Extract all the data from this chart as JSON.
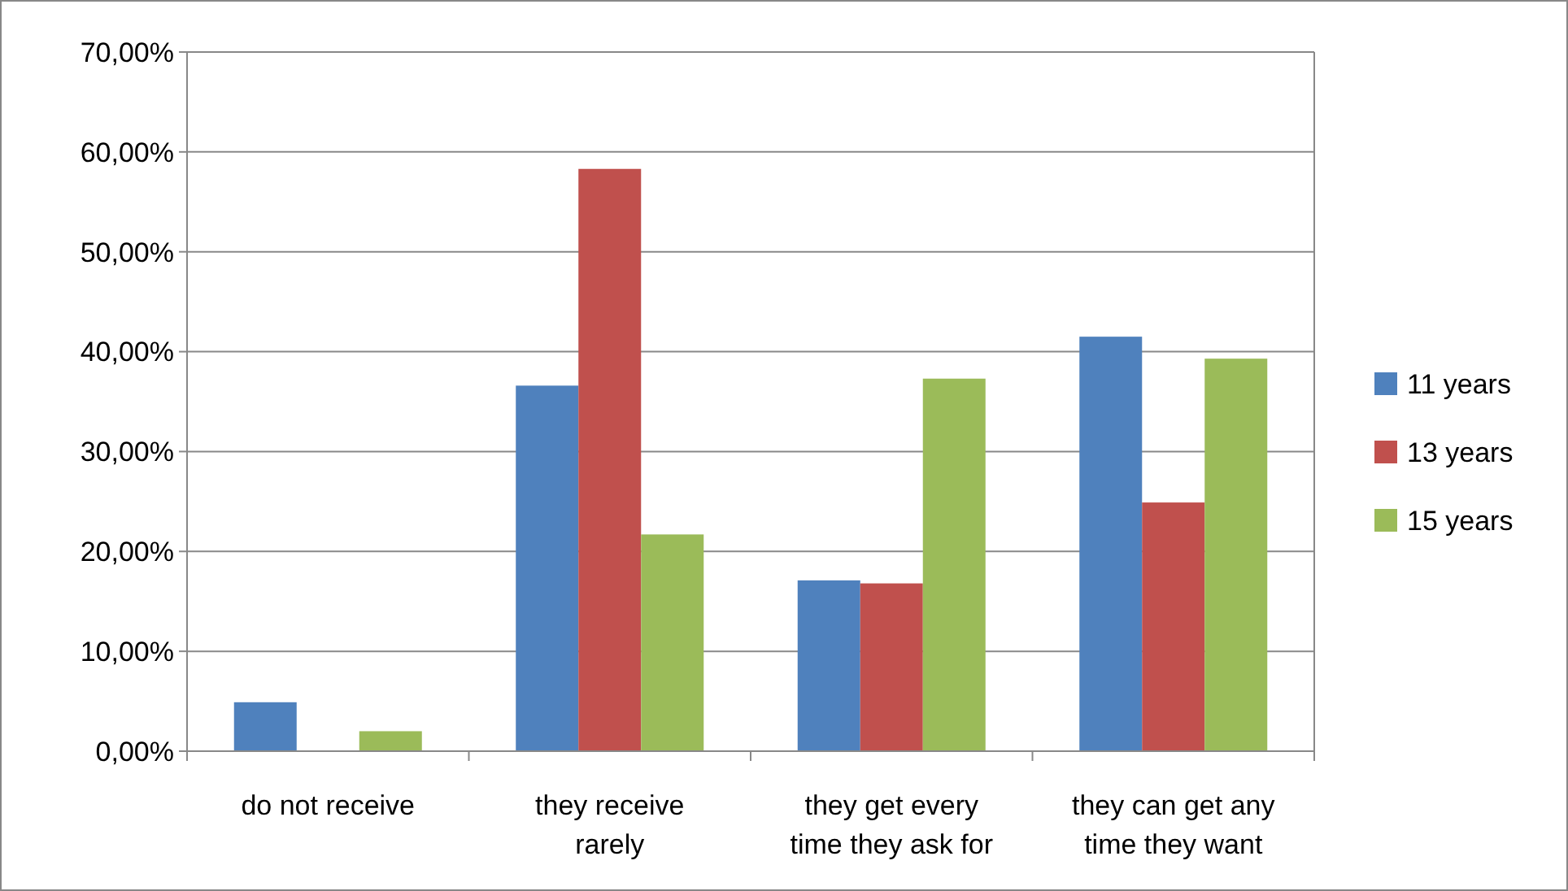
{
  "chart_data": {
    "type": "bar",
    "categories": [
      "do not receive",
      "they receive rarely",
      "they get every time they ask for",
      "they can get any time they want"
    ],
    "series": [
      {
        "name": "11 years",
        "color": "#4f81bd",
        "values": [
          4.9,
          36.6,
          17.1,
          41.5
        ]
      },
      {
        "name": "13 years",
        "color": "#c0504d",
        "values": [
          0,
          58.3,
          16.8,
          24.9
        ]
      },
      {
        "name": "15 years",
        "color": "#9bbb59",
        "values": [
          2.0,
          21.7,
          37.3,
          39.3
        ]
      }
    ],
    "ylim": [
      0,
      70
    ],
    "yticks": [
      {
        "value": 0,
        "label": "0,00%"
      },
      {
        "value": 10,
        "label": "10,00%"
      },
      {
        "value": 20,
        "label": "20,00%"
      },
      {
        "value": 30,
        "label": "30,00%"
      },
      {
        "value": 40,
        "label": "40,00%"
      },
      {
        "value": 50,
        "label": "50,00%"
      },
      {
        "value": 60,
        "label": "60,00%"
      },
      {
        "value": 70,
        "label": "70,00%"
      }
    ],
    "grid": "y",
    "legend": "right"
  }
}
